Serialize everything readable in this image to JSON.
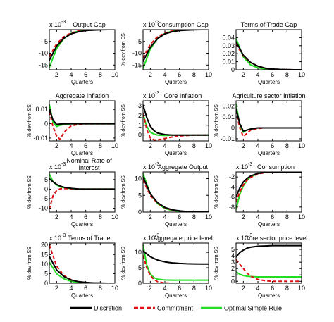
{
  "legend": {
    "placement": "bottom-center",
    "entries": [
      {
        "label": "Discretion",
        "color": "#000000",
        "dash": "solid"
      },
      {
        "label": "Commitment",
        "color": "#dd1111",
        "dash": "dashed"
      },
      {
        "label": "Optimal Simple Rule",
        "color": "#22dd22",
        "dash": "solid"
      }
    ]
  },
  "chart_data": [
    {
      "type": "line",
      "title": "Output Gap",
      "title2": "",
      "exponent": "-3",
      "xlabel": "Quarters",
      "ylabel": "",
      "xlim": [
        1,
        10
      ],
      "ylim": [
        -17,
        0
      ],
      "xticks": [
        2,
        4,
        6,
        8,
        10
      ],
      "yticks": [
        -15,
        -10,
        -5
      ],
      "x": [
        1,
        2,
        3,
        4,
        5,
        6,
        7,
        8,
        9,
        10
      ],
      "series": [
        {
          "name": "Discretion",
          "values": [
            -13.0,
            -7.0,
            -3.6,
            -1.8,
            -0.9,
            -0.4,
            -0.2,
            -0.1,
            0,
            0
          ]
        },
        {
          "name": "Commitment",
          "values": [
            -11.5,
            -6.0,
            -3.0,
            -1.4,
            -0.6,
            -0.2,
            -0.1,
            0,
            0,
            0
          ]
        },
        {
          "name": "Optimal Simple Rule",
          "values": [
            -16.0,
            -8.0,
            -3.8,
            -1.6,
            -0.6,
            -0.2,
            -0.1,
            0,
            0,
            0
          ]
        }
      ]
    },
    {
      "type": "line",
      "title": "Consumption Gap",
      "title2": "",
      "exponent": "-3",
      "xlabel": "Quarters",
      "ylabel": "% dev from SS",
      "xlim": [
        1,
        10
      ],
      "ylim": [
        -17,
        0
      ],
      "xticks": [
        2,
        4,
        6,
        8,
        10
      ],
      "yticks": [
        -15,
        -10,
        -5
      ],
      "x": [
        1,
        2,
        3,
        4,
        5,
        6,
        7,
        8,
        9,
        10
      ],
      "series": [
        {
          "name": "Discretion",
          "values": [
            -13.5,
            -7.5,
            -3.8,
            -1.8,
            -0.9,
            -0.4,
            -0.2,
            -0.1,
            0,
            0
          ]
        },
        {
          "name": "Commitment",
          "values": [
            -12.0,
            -6.2,
            -3.0,
            -1.4,
            -0.6,
            -0.2,
            -0.1,
            0,
            0,
            0
          ]
        },
        {
          "name": "Optimal Simple Rule",
          "values": [
            -16.5,
            -8.2,
            -3.8,
            -1.6,
            -0.6,
            -0.2,
            -0.1,
            0,
            0,
            0
          ]
        }
      ]
    },
    {
      "type": "line",
      "title": "Terms of Trade Gap",
      "title2": "",
      "exponent": "",
      "xlabel": "Quarters",
      "ylabel": "",
      "xlim": [
        1,
        10
      ],
      "ylim": [
        0,
        0.05
      ],
      "xticks": [
        2,
        4,
        6,
        8,
        10
      ],
      "yticks": [
        0,
        0.01,
        0.02,
        0.03,
        0.04
      ],
      "ytick_labels": [
        "0",
        "0.01",
        "0.02",
        "0.03",
        "0.04"
      ],
      "x": [
        1,
        2,
        3,
        4,
        5,
        6,
        7,
        8,
        9,
        10
      ],
      "series": [
        {
          "name": "Discretion",
          "values": [
            0.035,
            0.018,
            0.009,
            0.0045,
            0.002,
            0.001,
            0.0004,
            0.0002,
            0,
            0
          ]
        },
        {
          "name": "Commitment",
          "values": [
            0.032,
            0.017,
            0.009,
            0.0045,
            0.002,
            0.001,
            0.0004,
            0.0002,
            0,
            0
          ]
        },
        {
          "name": "Optimal Simple Rule",
          "values": [
            0.039,
            0.016,
            0.006,
            0.0025,
            0.001,
            0.0004,
            0.0002,
            0,
            0,
            0
          ]
        }
      ]
    },
    {
      "type": "line",
      "title": "Aggregate Inflation",
      "title2": "",
      "exponent": "",
      "xlabel": "Quarters",
      "ylabel": "% dev from SS",
      "xlim": [
        1,
        10
      ],
      "ylim": [
        -0.012,
        0.016
      ],
      "xticks": [
        2,
        4,
        6,
        8,
        10
      ],
      "yticks": [
        -0.01,
        0,
        0.01
      ],
      "ytick_labels": [
        "-0.01",
        "0",
        "0.01"
      ],
      "x": [
        1,
        1.5,
        2,
        2.5,
        3,
        4,
        5,
        6,
        7,
        8,
        9,
        10
      ],
      "series": [
        {
          "name": "Discretion",
          "values": [
            0.0105,
            0.0025,
            -0.0005,
            -0.0002,
            -0.0001,
            0,
            0,
            0,
            0,
            0,
            0,
            0
          ]
        },
        {
          "name": "Commitment",
          "values": [
            0.0085,
            -0.002,
            -0.0085,
            -0.011,
            -0.006,
            -0.0015,
            -0.0004,
            0,
            0,
            0,
            0,
            0
          ]
        },
        {
          "name": "Optimal Simple Rule",
          "values": [
            0.0135,
            0.001,
            -0.002,
            -0.001,
            -0.0005,
            -0.0001,
            0,
            0,
            0,
            0,
            0,
            0
          ]
        }
      ]
    },
    {
      "type": "line",
      "title": "Core Inflation",
      "title2": "",
      "exponent": "-3",
      "xlabel": "Quarters",
      "ylabel": "% dev from SS",
      "xlim": [
        1,
        10
      ],
      "ylim": [
        -0.6,
        3.5
      ],
      "xticks": [
        2,
        4,
        6,
        8,
        10
      ],
      "yticks": [
        0,
        1,
        2,
        3
      ],
      "x": [
        1,
        1.5,
        2,
        2.5,
        3,
        4,
        5,
        6,
        7,
        8,
        9,
        10
      ],
      "series": [
        {
          "name": "Discretion",
          "values": [
            3.1,
            1.8,
            0.9,
            0.45,
            0.2,
            0.05,
            0,
            0,
            0,
            0,
            0,
            0
          ]
        },
        {
          "name": "Commitment",
          "values": [
            2.2,
            0.6,
            -0.3,
            -0.5,
            -0.5,
            -0.35,
            -0.2,
            -0.1,
            -0.05,
            0,
            0,
            0
          ]
        },
        {
          "name": "Optimal Simple Rule",
          "values": [
            2.1,
            0.9,
            0.3,
            0.1,
            0,
            -0.05,
            0,
            0,
            0,
            0,
            0,
            0
          ]
        }
      ]
    },
    {
      "type": "line",
      "title": "Agriculture sector Inflation",
      "title2": "",
      "exponent": "",
      "xlabel": "Quarters",
      "ylabel": "% dev from SS",
      "xlim": [
        1,
        10
      ],
      "ylim": [
        -0.012,
        0.025
      ],
      "xticks": [
        2,
        4,
        6,
        8,
        10
      ],
      "yticks": [
        -0.01,
        0,
        0.01,
        0.02
      ],
      "ytick_labels": [
        "-0.01",
        "0",
        "0.01",
        "0.02"
      ],
      "x": [
        1,
        1.5,
        2,
        2.5,
        3,
        4,
        5,
        6,
        7,
        8,
        9,
        10
      ],
      "series": [
        {
          "name": "Discretion",
          "values": [
            0.018,
            0.004,
            -0.003,
            -0.002,
            -0.001,
            0,
            0,
            0,
            0,
            0,
            0,
            0
          ]
        },
        {
          "name": "Commitment",
          "values": [
            0.016,
            0.0,
            -0.008,
            -0.005,
            -0.002,
            -0.0005,
            0,
            0,
            0,
            0,
            0,
            0
          ]
        },
        {
          "name": "Optimal Simple Rule",
          "values": [
            0.022,
            0.003,
            -0.004,
            -0.002,
            -0.001,
            0,
            0,
            0,
            0,
            0,
            0,
            0
          ]
        }
      ]
    },
    {
      "type": "line",
      "title": "Nominal Rate of",
      "title2": "Interest",
      "exponent": "-3",
      "xlabel": "Quarters",
      "ylabel": "% dev from SS",
      "xlim": [
        1,
        10
      ],
      "ylim": [
        -12,
        9
      ],
      "xticks": [
        2,
        4,
        6,
        8,
        10
      ],
      "yticks": [
        -10,
        -5,
        0,
        5
      ],
      "x": [
        1,
        1.5,
        2,
        2.5,
        3,
        4,
        5,
        6,
        7,
        8,
        9,
        10
      ],
      "series": [
        {
          "name": "Discretion",
          "values": [
            5.5,
            3.8,
            2.5,
            1.6,
            1.0,
            0.4,
            0.1,
            0,
            0,
            0,
            0,
            0
          ]
        },
        {
          "name": "Commitment",
          "values": [
            -10.5,
            -3.5,
            -0.8,
            0.2,
            0.3,
            0.2,
            0.1,
            0,
            0,
            0,
            0,
            0
          ]
        },
        {
          "name": "Optimal Simple Rule",
          "values": [
            8.0,
            4.0,
            2.2,
            1.2,
            0.7,
            0.25,
            0.1,
            0,
            0,
            0,
            0,
            0
          ]
        }
      ]
    },
    {
      "type": "line",
      "title": "Aggregate Output",
      "title2": "",
      "exponent": "-3",
      "xlabel": "Quarters",
      "ylabel": "% dev from SS",
      "xlim": [
        1,
        10
      ],
      "ylim": [
        0,
        12
      ],
      "xticks": [
        2,
        4,
        6,
        8,
        10
      ],
      "yticks": [
        0,
        5,
        10
      ],
      "x": [
        1,
        2,
        3,
        4,
        5,
        6,
        7,
        8,
        9,
        10
      ],
      "series": [
        {
          "name": "Discretion",
          "values": [
            10.5,
            5.5,
            2.8,
            1.4,
            0.7,
            0.35,
            0.15,
            0.05,
            0,
            0
          ]
        },
        {
          "name": "Commitment",
          "values": [
            9.5,
            5.0,
            2.6,
            1.3,
            0.6,
            0.3,
            0.1,
            0,
            0,
            0
          ]
        },
        {
          "name": "Optimal Simple Rule",
          "values": [
            11.5,
            5.5,
            2.5,
            1.1,
            0.5,
            0.2,
            0.1,
            0,
            0,
            0
          ]
        }
      ]
    },
    {
      "type": "line",
      "title": "Consumption",
      "title2": "",
      "exponent": "-3",
      "xlabel": "Quarters",
      "ylabel": "% dev from SS",
      "xlim": [
        1,
        10
      ],
      "ylim": [
        -9,
        -1
      ],
      "xticks": [
        2,
        4,
        6,
        8,
        10
      ],
      "yticks": [
        -8,
        -6,
        -4,
        -2
      ],
      "x": [
        1,
        1.5,
        2,
        2.5,
        3,
        4,
        5,
        6,
        7,
        8,
        9,
        10
      ],
      "series": [
        {
          "name": "Discretion",
          "values": [
            -6.0,
            -4.2,
            -3.0,
            -2.3,
            -1.8,
            -1.3,
            -1.1,
            -1.05,
            -1.0,
            -1.0,
            -1.0,
            -1.0
          ]
        },
        {
          "name": "Commitment",
          "values": [
            -7.0,
            -5.0,
            -3.6,
            -2.7,
            -2.1,
            -1.4,
            -1.15,
            -1.05,
            -1.0,
            -1.0,
            -1.0,
            -1.0
          ]
        },
        {
          "name": "Optimal Simple Rule",
          "values": [
            -8.5,
            -5.5,
            -3.8,
            -2.7,
            -2.0,
            -1.3,
            -1.1,
            -1.0,
            -1.0,
            -1.0,
            -1.0,
            -1.0
          ]
        }
      ]
    },
    {
      "type": "line",
      "title": "Terms of Trade",
      "title2": "",
      "exponent": "-3",
      "xlabel": "Quarters",
      "ylabel": "% dev from SS",
      "xlim": [
        1,
        10
      ],
      "ylim": [
        0,
        21
      ],
      "xticks": [
        2,
        4,
        6,
        8,
        10
      ],
      "yticks": [
        0,
        5,
        10,
        15,
        20
      ],
      "x": [
        1,
        2,
        3,
        4,
        5,
        6,
        7,
        8,
        9,
        10
      ],
      "series": [
        {
          "name": "Discretion",
          "values": [
            14.0,
            7.0,
            3.5,
            1.7,
            0.8,
            0.4,
            0.2,
            0.1,
            0,
            0
          ]
        },
        {
          "name": "Commitment",
          "values": [
            20.0,
            9.0,
            4.0,
            1.8,
            0.8,
            0.3,
            0.1,
            0,
            0,
            0
          ]
        },
        {
          "name": "Optimal Simple Rule",
          "values": [
            11.0,
            5.0,
            2.3,
            1.0,
            0.4,
            0.2,
            0.1,
            0,
            0,
            0
          ]
        }
      ]
    },
    {
      "type": "line",
      "title": "Aggregate price level",
      "title2": "",
      "exponent": "-3",
      "xlabel": "Quarters",
      "ylabel": "% dev from SS",
      "xlim": [
        1,
        10
      ],
      "ylim": [
        0,
        13
      ],
      "xticks": [
        2,
        4,
        6,
        8,
        10
      ],
      "yticks": [
        0,
        5,
        10
      ],
      "x": [
        1,
        1.5,
        2,
        2.5,
        3,
        4,
        5,
        6,
        7,
        8,
        9,
        10
      ],
      "series": [
        {
          "name": "Discretion",
          "values": [
            10.5,
            9.5,
            8.6,
            8.0,
            7.5,
            6.9,
            6.6,
            6.4,
            6.3,
            6.25,
            6.2,
            6.2
          ]
        },
        {
          "name": "Commitment",
          "values": [
            9.0,
            5.0,
            2.5,
            1.2,
            0.5,
            0.1,
            0,
            0,
            0,
            0,
            0,
            0
          ]
        },
        {
          "name": "Optimal Simple Rule",
          "values": [
            12.5,
            6.0,
            3.0,
            1.8,
            1.3,
            1.05,
            1.0,
            1.0,
            1.0,
            1.0,
            1.0,
            1.0
          ]
        }
      ]
    },
    {
      "type": "line",
      "title": "Core sector price level",
      "title2": "",
      "exponent": "-3",
      "xlabel": "Quarters",
      "ylabel": "% dev from SS",
      "xlim": [
        1,
        10
      ],
      "ylim": [
        -0.3,
        6
      ],
      "xticks": [
        2,
        4,
        6,
        8,
        10
      ],
      "yticks": [
        0,
        1,
        2,
        3,
        4,
        5
      ],
      "x": [
        1,
        1.5,
        2,
        2.5,
        3,
        4,
        5,
        6,
        7,
        8,
        9,
        10
      ],
      "series": [
        {
          "name": "Discretion",
          "values": [
            3.8,
            4.5,
            4.9,
            5.2,
            5.35,
            5.5,
            5.55,
            5.6,
            5.6,
            5.6,
            5.6,
            5.6
          ]
        },
        {
          "name": "Commitment",
          "values": [
            3.4,
            2.7,
            2.0,
            1.3,
            0.8,
            0.3,
            0.1,
            0,
            0,
            0,
            0,
            0
          ]
        },
        {
          "name": "Optimal Simple Rule",
          "values": [
            1.5,
            1.1,
            0.9,
            0.8,
            0.75,
            0.7,
            0.7,
            0.7,
            0.7,
            0.7,
            0.7,
            0.7
          ]
        }
      ]
    }
  ]
}
